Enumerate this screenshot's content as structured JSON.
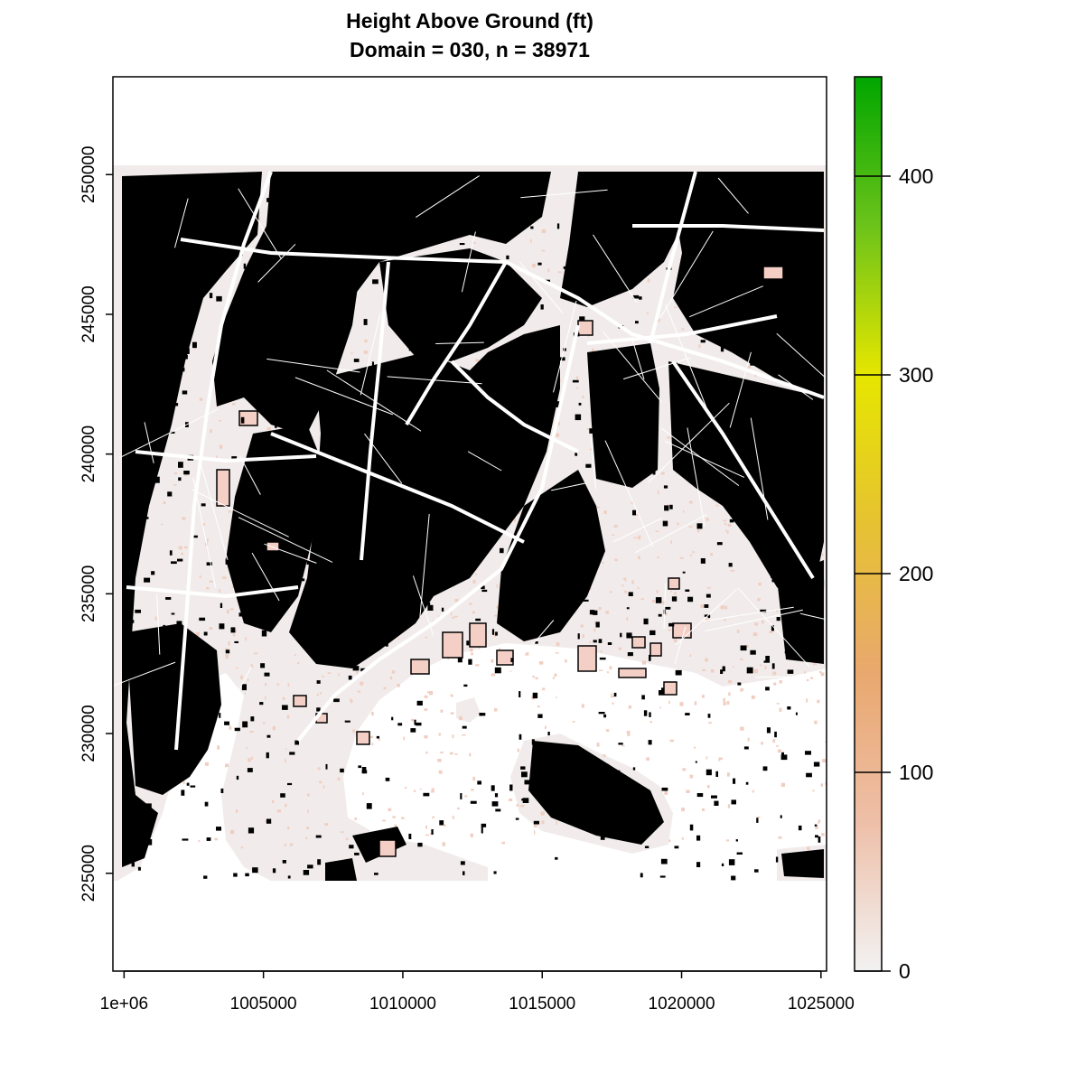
{
  "chart_data": {
    "type": "heatmap",
    "title": "Height Above Ground (ft)",
    "subtitle": "Domain = 030, n = 38971",
    "xlim": [
      999600,
      1025200
    ],
    "ylim": [
      221500,
      253500
    ],
    "x_ticks": [
      {
        "value": 1000000,
        "label": "1e+06"
      },
      {
        "value": 1005000,
        "label": "1005000"
      },
      {
        "value": 1010000,
        "label": "1010000"
      },
      {
        "value": 1015000,
        "label": "1015000"
      },
      {
        "value": 1020000,
        "label": "1020000"
      },
      {
        "value": 1025000,
        "label": "1025000"
      }
    ],
    "y_ticks": [
      {
        "value": 225000,
        "label": "225000"
      },
      {
        "value": 230000,
        "label": "230000"
      },
      {
        "value": 235000,
        "label": "235000"
      },
      {
        "value": 240000,
        "label": "240000"
      },
      {
        "value": 245000,
        "label": "245000"
      },
      {
        "value": 250000,
        "label": "250000"
      }
    ],
    "colorbar": {
      "range": [
        0,
        450
      ],
      "ticks": [
        0,
        100,
        200,
        300,
        400
      ],
      "colors": [
        "#f2f2f2",
        "#eebfa8",
        "#e9a86e",
        "#e6c232",
        "#e6e600",
        "#6cc31a",
        "#00a600"
      ]
    },
    "colors": {
      "land": "#f1eceb",
      "buildings": "#000000",
      "low_structures": "#f0cfc2",
      "water": "#ffffff"
    }
  }
}
